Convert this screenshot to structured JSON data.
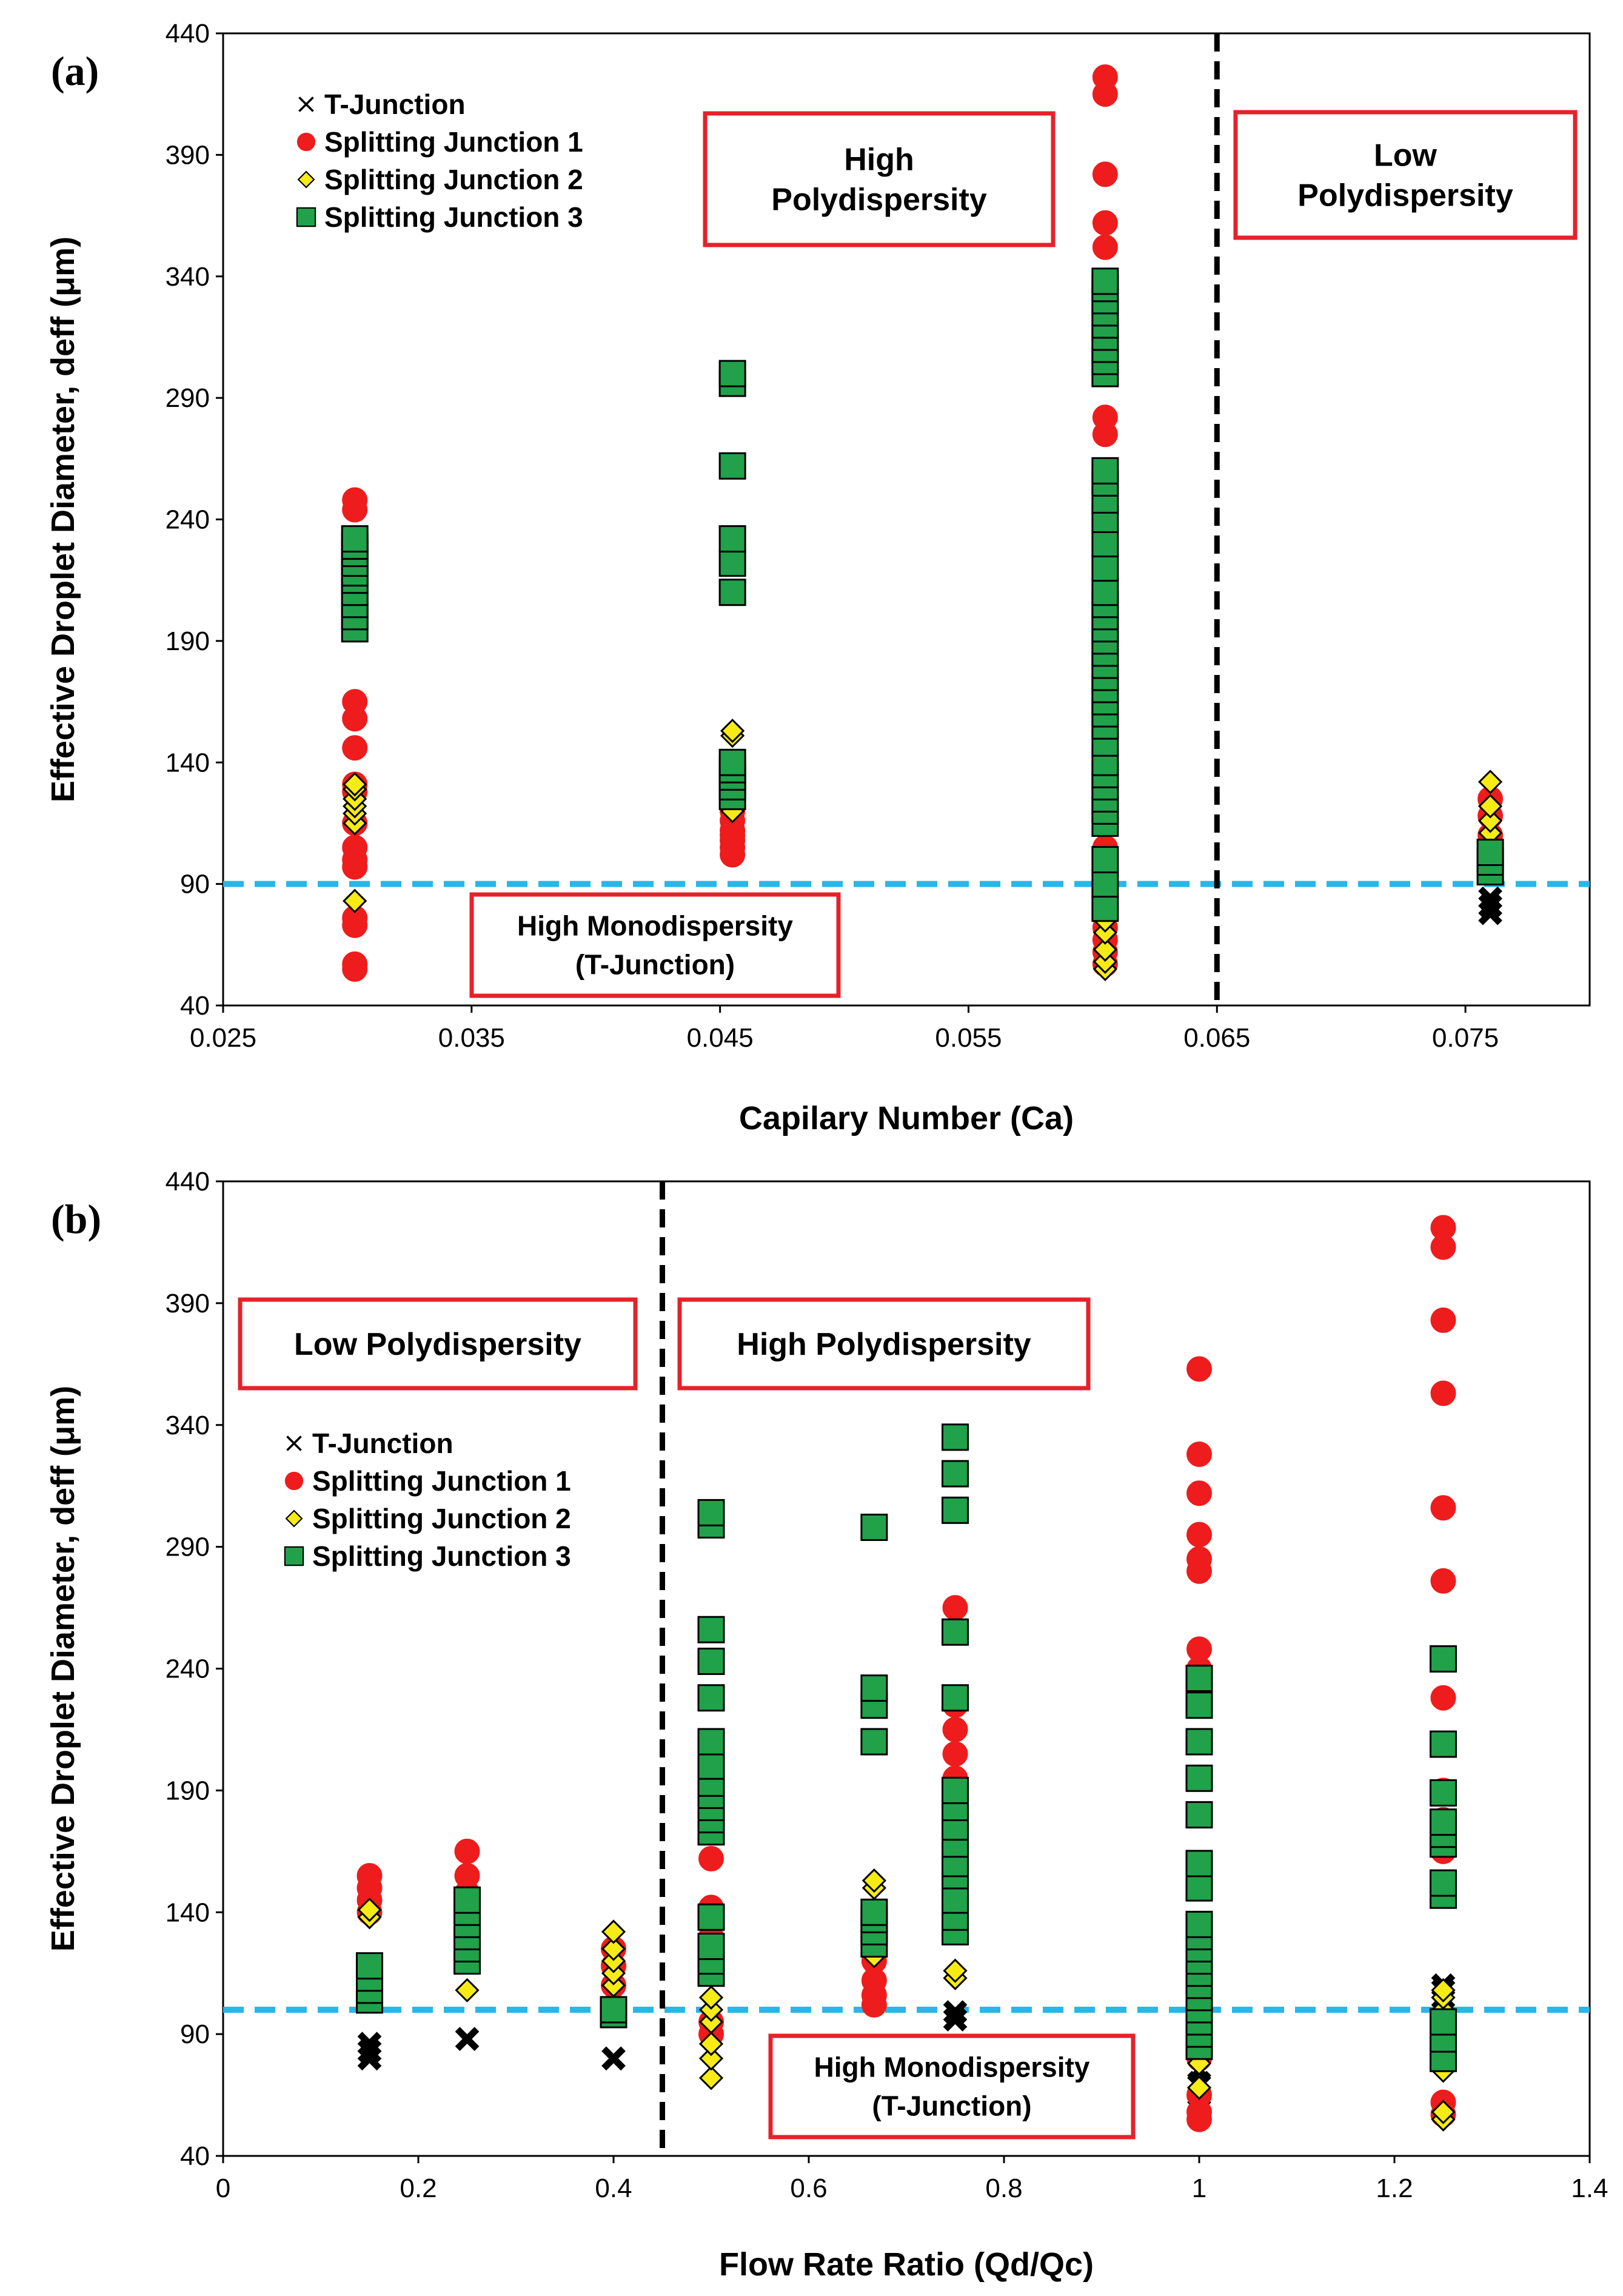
{
  "chart_data": [
    {
      "type": "scatter",
      "panel_label": "(a)",
      "xlabel": "Capilary Number (Ca)",
      "ylabel": "Effective Droplet Diameter, deff (μm)",
      "xlim": [
        0.025,
        0.08
      ],
      "ylim": [
        40,
        440
      ],
      "xticks": [
        "0.025",
        "0.035",
        "0.045",
        "0.055",
        "0.065",
        "0.075"
      ],
      "xtick_values": [
        0.025,
        0.035,
        0.045,
        0.055,
        0.065,
        0.075
      ],
      "yticks": [
        "40",
        "90",
        "140",
        "190",
        "240",
        "290",
        "340",
        "390",
        "440"
      ],
      "ytick_values": [
        40,
        90,
        140,
        190,
        240,
        290,
        340,
        390,
        440
      ],
      "grid": false,
      "legend_position": "top-left",
      "reference_lines": [
        {
          "orientation": "horizontal",
          "value": 90,
          "color": "#29B6E8",
          "style": "dashed"
        },
        {
          "orientation": "vertical",
          "value": 0.065,
          "color": "#000000",
          "style": "dashed"
        }
      ],
      "annotations": [
        {
          "lines": [
            "High",
            "Polydispersity"
          ],
          "cx": 0.0515,
          "cy": 405
        },
        {
          "lines": [
            "Low",
            "Polydispersity"
          ],
          "cx": 0.0727,
          "cy": 406
        },
        {
          "lines": [
            "High Monodispersity",
            "(T-Junction)"
          ],
          "cx": 0.0418,
          "cy": 72
        }
      ],
      "series": [
        {
          "name": "T-Junction",
          "marker": "x",
          "color": "#000000",
          "x": [
            0.0605,
            0.0605,
            0.0605,
            0.0605,
            0.076,
            0.076,
            0.076
          ],
          "y": [
            76,
            80,
            83,
            86,
            78,
            81,
            84
          ]
        },
        {
          "name": "Splitting Junction 1",
          "marker": "circle",
          "color": "#EE1C1C",
          "x": [
            0.0303,
            0.0303,
            0.0303,
            0.0303,
            0.0303,
            0.0303,
            0.0303,
            0.0303,
            0.0303,
            0.0303,
            0.0303,
            0.0303,
            0.0303,
            0.0303,
            0.0303,
            0.0303,
            0.0303,
            0.0303,
            0.0455,
            0.0455,
            0.0455,
            0.0455,
            0.0455,
            0.0455,
            0.0455,
            0.0605,
            0.0605,
            0.0605,
            0.0605,
            0.0605,
            0.0605,
            0.0605,
            0.0605,
            0.0605,
            0.0605,
            0.0605,
            0.0605,
            0.0605,
            0.0605,
            0.0605,
            0.0605,
            0.0605,
            0.0605,
            0.0605,
            0.0605,
            0.0605,
            0.0605,
            0.0605,
            0.0605,
            0.0605,
            0.076,
            0.076,
            0.076,
            0.076,
            0.076,
            0.076
          ],
          "y": [
            55,
            57,
            73,
            76,
            97,
            100,
            105,
            115,
            128,
            131,
            146,
            158,
            165,
            195,
            200,
            225,
            244,
            248,
            102,
            105,
            108,
            110,
            112,
            116,
            120,
            57,
            62,
            67,
            72,
            78,
            84,
            95,
            105,
            115,
            125,
            135,
            145,
            160,
            200,
            225,
            240,
            260,
            275,
            282,
            325,
            352,
            362,
            382,
            415,
            422,
            95,
            100,
            105,
            110,
            118,
            125
          ]
        },
        {
          "name": "Splitting Junction 2",
          "marker": "diamond",
          "color": "#F6EB14",
          "x": [
            0.0303,
            0.0303,
            0.0303,
            0.0303,
            0.0303,
            0.0303,
            0.0303,
            0.0455,
            0.0455,
            0.0455,
            0.0605,
            0.0605,
            0.0605,
            0.0605,
            0.0605,
            0.0605,
            0.0605,
            0.0605,
            0.076,
            0.076,
            0.076,
            0.076,
            0.076,
            0.076
          ],
          "y": [
            83,
            115,
            119,
            122,
            125,
            129,
            131,
            120,
            151,
            153,
            55,
            58,
            63,
            70,
            75,
            88,
            95,
            100,
            100,
            105,
            111,
            116,
            122,
            132
          ]
        },
        {
          "name": "Splitting Junction 3",
          "marker": "square",
          "color": "#21A14A",
          "x": [
            0.0303,
            0.0303,
            0.0303,
            0.0303,
            0.0303,
            0.0303,
            0.0303,
            0.0303,
            0.0303,
            0.0303,
            0.0455,
            0.0455,
            0.0455,
            0.0455,
            0.0455,
            0.0455,
            0.0455,
            0.0455,
            0.0455,
            0.0455,
            0.0455,
            0.0605,
            0.0605,
            0.0605,
            0.0605,
            0.0605,
            0.0605,
            0.0605,
            0.0605,
            0.0605,
            0.0605,
            0.0605,
            0.0605,
            0.0605,
            0.0605,
            0.0605,
            0.0605,
            0.0605,
            0.0605,
            0.0605,
            0.0605,
            0.0605,
            0.0605,
            0.0605,
            0.0605,
            0.0605,
            0.0605,
            0.0605,
            0.0605,
            0.0605,
            0.0605,
            0.0605,
            0.0605,
            0.0605,
            0.0605,
            0.0605,
            0.0605,
            0.0605,
            0.076,
            0.076,
            0.076
          ],
          "y": [
            195,
            200,
            205,
            210,
            215,
            218,
            222,
            226,
            229,
            232,
            126,
            130,
            134,
            137,
            140,
            210,
            222,
            232,
            262,
            296,
            300,
            80,
            90,
            100,
            115,
            120,
            125,
            130,
            135,
            140,
            148,
            155,
            160,
            165,
            170,
            175,
            180,
            185,
            190,
            195,
            200,
            205,
            210,
            220,
            230,
            240,
            248,
            255,
            260,
            300,
            305,
            310,
            315,
            320,
            325,
            330,
            335,
            338,
            95,
            99,
            103
          ]
        }
      ]
    },
    {
      "type": "scatter",
      "panel_label": "(b)",
      "xlabel": "Flow Rate Ratio (Qd/Qc)",
      "ylabel": "Effective Droplet Diameter, deff (μm)",
      "xlim": [
        0,
        1.4
      ],
      "ylim": [
        40,
        440
      ],
      "xticks": [
        "0",
        "0.2",
        "0.4",
        "0.6",
        "0.8",
        "1",
        "1.2",
        "1.4"
      ],
      "xtick_values": [
        0,
        0.2,
        0.4,
        0.6,
        0.8,
        1.0,
        1.2,
        1.4
      ],
      "yticks": [
        "40",
        "90",
        "140",
        "190",
        "240",
        "290",
        "340",
        "390",
        "440"
      ],
      "ytick_values": [
        40,
        90,
        140,
        190,
        240,
        290,
        340,
        390,
        440
      ],
      "grid": false,
      "legend_position": "center-left",
      "reference_lines": [
        {
          "orientation": "horizontal",
          "value": 100,
          "color": "#29B6E8",
          "style": "dashed"
        },
        {
          "orientation": "vertical",
          "value": 0.45,
          "color": "#000000",
          "style": "dashed"
        }
      ],
      "annotations": [
        {
          "lines": [
            "Low Polydispersity"
          ],
          "cx": 0.226,
          "cy": 372
        },
        {
          "lines": [
            "High Polydispersity"
          ],
          "cx": 0.6,
          "cy": 372
        },
        {
          "lines": [
            "High Monodispersity",
            "(T-Junction)"
          ],
          "cx": 0.753,
          "cy": 72
        }
      ],
      "series": [
        {
          "name": "T-Junction",
          "marker": "x",
          "color": "#000000",
          "x": [
            0.15,
            0.15,
            0.15,
            0.25,
            0.4,
            0.75,
            0.75,
            1.0,
            1.0,
            1.0,
            1.25,
            1.25,
            1.25
          ],
          "y": [
            80,
            83,
            86,
            88,
            80,
            96,
            99,
            65,
            70,
            75,
            105,
            108,
            110
          ]
        },
        {
          "name": "Splitting Junction 1",
          "marker": "circle",
          "color": "#EE1C1C",
          "x": [
            0.15,
            0.15,
            0.15,
            0.15,
            0.25,
            0.25,
            0.25,
            0.25,
            0.25,
            0.4,
            0.4,
            0.4,
            0.5,
            0.5,
            0.5,
            0.5,
            0.5,
            0.5,
            0.667,
            0.667,
            0.667,
            0.667,
            0.75,
            0.75,
            0.75,
            0.75,
            0.75,
            0.75,
            0.75,
            0.75,
            0.75,
            0.75,
            1.0,
            1.0,
            1.0,
            1.0,
            1.0,
            1.0,
            1.0,
            1.0,
            1.0,
            1.0,
            1.0,
            1.0,
            1.0,
            1.0,
            1.0,
            1.0,
            1.0,
            1.0,
            1.25,
            1.25,
            1.25,
            1.25,
            1.25,
            1.25,
            1.25,
            1.25,
            1.25,
            1.25,
            1.25,
            1.25
          ],
          "y": [
            140,
            145,
            150,
            155,
            130,
            140,
            148,
            155,
            165,
            110,
            118,
            125,
            90,
            95,
            130,
            137,
            142,
            162,
            102,
            106,
            112,
            120,
            145,
            155,
            165,
            175,
            185,
            195,
            205,
            215,
            225,
            265,
            55,
            58,
            65,
            80,
            90,
            100,
            125,
            130,
            150,
            160,
            240,
            248,
            280,
            285,
            295,
            312,
            328,
            363,
            57,
            62,
            165,
            178,
            190,
            228,
            276,
            306,
            353,
            383,
            413,
            421
          ]
        },
        {
          "name": "Splitting Junction 2",
          "marker": "diamond",
          "color": "#F6EB14",
          "x": [
            0.15,
            0.15,
            0.25,
            0.4,
            0.4,
            0.4,
            0.4,
            0.4,
            0.5,
            0.5,
            0.5,
            0.5,
            0.5,
            0.5,
            0.667,
            0.667,
            0.667,
            0.75,
            0.75,
            1.0,
            1.0,
            1.0,
            1.0,
            1.0,
            1.0,
            1.0,
            1.25,
            1.25,
            1.25,
            1.25,
            1.25,
            1.25
          ],
          "y": [
            138,
            141,
            108,
            110,
            115,
            120,
            125,
            132,
            72,
            80,
            86,
            95,
            100,
            105,
            122,
            150,
            153,
            113,
            116,
            68,
            78,
            85,
            92,
            105,
            115,
            125,
            55,
            58,
            75,
            100,
            105,
            108
          ]
        },
        {
          "name": "Splitting Junction 3",
          "marker": "square",
          "color": "#21A14A",
          "x": [
            0.15,
            0.15,
            0.15,
            0.15,
            0.25,
            0.25,
            0.25,
            0.25,
            0.25,
            0.25,
            0.4,
            0.4,
            0.5,
            0.5,
            0.5,
            0.5,
            0.5,
            0.5,
            0.5,
            0.5,
            0.5,
            0.5,
            0.5,
            0.5,
            0.5,
            0.5,
            0.5,
            0.5,
            0.667,
            0.667,
            0.667,
            0.667,
            0.667,
            0.667,
            0.667,
            0.667,
            0.75,
            0.75,
            0.75,
            0.75,
            0.75,
            0.75,
            0.75,
            0.75,
            0.75,
            0.75,
            0.75,
            0.75,
            0.75,
            0.75,
            1.0,
            1.0,
            1.0,
            1.0,
            1.0,
            1.0,
            1.0,
            1.0,
            1.0,
            1.0,
            1.0,
            1.0,
            1.0,
            1.0,
            1.0,
            1.0,
            1.0,
            1.0,
            1.25,
            1.25,
            1.25,
            1.25,
            1.25,
            1.25,
            1.25,
            1.25,
            1.25,
            1.25,
            1.25
          ],
          "y": [
            104,
            108,
            113,
            118,
            120,
            125,
            130,
            135,
            140,
            145,
            98,
            100,
            115,
            120,
            126,
            138,
            173,
            178,
            183,
            188,
            193,
            200,
            210,
            228,
            243,
            256,
            299,
            304,
            127,
            132,
            137,
            140,
            210,
            225,
            232,
            298,
            132,
            138,
            145,
            155,
            160,
            168,
            175,
            183,
            190,
            228,
            255,
            305,
            320,
            335,
            85,
            90,
            95,
            100,
            105,
            110,
            115,
            120,
            125,
            130,
            135,
            150,
            160,
            180,
            195,
            210,
            225,
            236,
            80,
            88,
            95,
            147,
            152,
            168,
            172,
            177,
            189,
            209,
            244
          ]
        }
      ]
    }
  ],
  "legend": {
    "labels": [
      "T-Junction",
      "Splitting Junction 1",
      "Splitting Junction 2",
      "Splitting Junction 3"
    ]
  },
  "colors": {
    "tjunction": "#000000",
    "junction1": "#EE1C1C",
    "junction2": "#F6EB14",
    "junction3": "#21A14A",
    "reference_line": "#29B6E8",
    "annotation_border": "#E5222A"
  }
}
